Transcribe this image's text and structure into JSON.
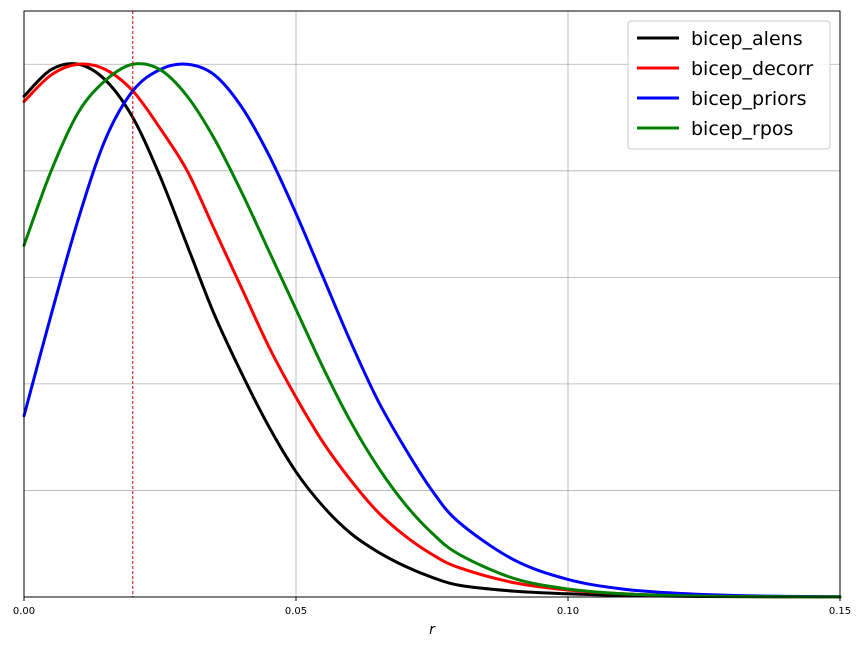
{
  "chart_data": {
    "type": "line",
    "title": "",
    "xlabel": "r",
    "ylabel": "",
    "xlim": [
      0,
      0.15
    ],
    "ylim": [
      0,
      1.1
    ],
    "x_ticks": [
      0.0,
      0.05,
      0.1,
      0.15
    ],
    "x_tick_labels": [
      "0.00",
      "0.05",
      "0.10",
      "0.15"
    ],
    "y_gridlines": [
      0.2,
      0.4,
      0.6,
      0.8,
      1.0
    ],
    "grid": true,
    "legend_position": "top-right",
    "reference_line": {
      "x": 0.02,
      "color": "#cc0000",
      "style": "dashed"
    },
    "series": [
      {
        "name": "bicep_alens",
        "color": "#000000",
        "x": [
          0,
          0.005,
          0.01,
          0.015,
          0.02,
          0.025,
          0.03,
          0.035,
          0.04,
          0.045,
          0.05,
          0.055,
          0.06,
          0.065,
          0.07,
          0.075,
          0.08,
          0.09,
          0.1,
          0.11,
          0.12,
          0.13,
          0.14,
          0.15
        ],
        "y": [
          0.94,
          0.99,
          1.0,
          0.97,
          0.9,
          0.79,
          0.66,
          0.53,
          0.42,
          0.32,
          0.235,
          0.17,
          0.12,
          0.085,
          0.058,
          0.037,
          0.022,
          0.011,
          0.006,
          0.003,
          0.0015,
          0.0007,
          0.0003,
          0.0001
        ]
      },
      {
        "name": "bicep_decorr",
        "color": "#ff0000",
        "x": [
          0,
          0.005,
          0.01,
          0.015,
          0.02,
          0.025,
          0.03,
          0.035,
          0.04,
          0.045,
          0.05,
          0.055,
          0.06,
          0.065,
          0.07,
          0.075,
          0.08,
          0.09,
          0.1,
          0.11,
          0.12,
          0.13,
          0.14,
          0.15
        ],
        "y": [
          0.93,
          0.98,
          1.0,
          0.99,
          0.95,
          0.88,
          0.8,
          0.69,
          0.58,
          0.47,
          0.375,
          0.29,
          0.22,
          0.16,
          0.115,
          0.08,
          0.055,
          0.027,
          0.013,
          0.006,
          0.003,
          0.0015,
          0.0007,
          0.0003
        ]
      },
      {
        "name": "bicep_priors",
        "color": "#0000ff",
        "x": [
          0,
          0.005,
          0.01,
          0.015,
          0.02,
          0.025,
          0.03,
          0.035,
          0.04,
          0.045,
          0.05,
          0.055,
          0.06,
          0.065,
          0.07,
          0.075,
          0.08,
          0.09,
          0.1,
          0.11,
          0.12,
          0.13,
          0.14,
          0.15
        ],
        "y": [
          0.34,
          0.53,
          0.71,
          0.86,
          0.95,
          0.99,
          1.0,
          0.98,
          0.92,
          0.83,
          0.72,
          0.6,
          0.48,
          0.37,
          0.28,
          0.2,
          0.14,
          0.07,
          0.033,
          0.015,
          0.007,
          0.003,
          0.0012,
          0.0005
        ]
      },
      {
        "name": "bicep_rpos",
        "color": "#008000",
        "x": [
          0,
          0.005,
          0.01,
          0.015,
          0.02,
          0.025,
          0.03,
          0.035,
          0.04,
          0.045,
          0.05,
          0.055,
          0.06,
          0.065,
          0.07,
          0.075,
          0.08,
          0.09,
          0.1,
          0.11,
          0.12,
          0.13,
          0.14,
          0.15
        ],
        "y": [
          0.66,
          0.8,
          0.91,
          0.97,
          1.0,
          0.99,
          0.94,
          0.86,
          0.76,
          0.65,
          0.54,
          0.43,
          0.33,
          0.245,
          0.175,
          0.12,
          0.08,
          0.035,
          0.015,
          0.006,
          0.0025,
          0.001,
          0.0004,
          0.0002
        ]
      }
    ]
  }
}
